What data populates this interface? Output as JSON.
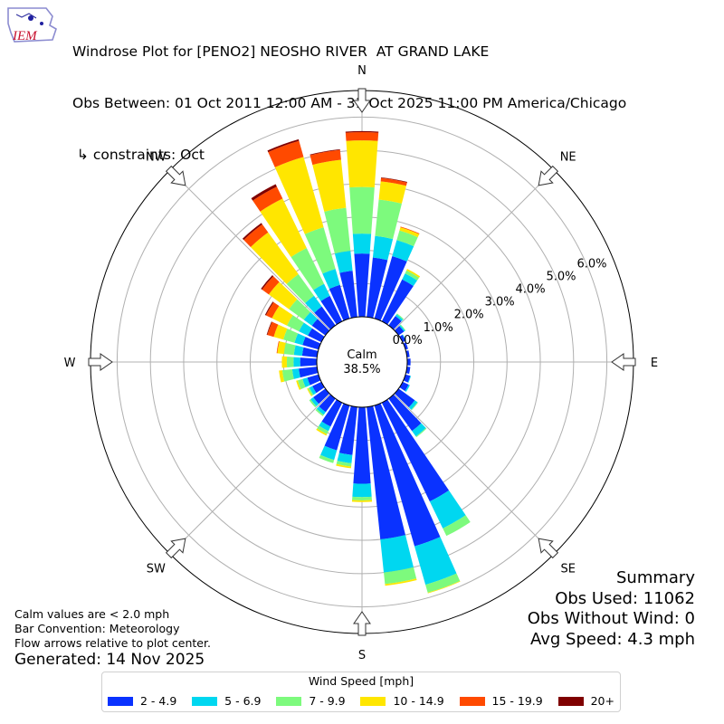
{
  "logo": {
    "text": "IEM",
    "color": "#c8102e"
  },
  "title": {
    "line1": "Windrose Plot for [PENO2] NEOSHO RIVER  AT GRAND LAKE",
    "line2": "Obs Between: 01 Oct 2011 12:00 AM - 31 Oct 2025 11:00 PM America/Chicago",
    "line3": " ↳ constraints: Oct"
  },
  "summary": {
    "heading": "Summary",
    "obs_used": "Obs Used: 11062",
    "obs_without_wind": "Obs Without Wind: 0",
    "avg_speed": "Avg Speed: 4.3 mph"
  },
  "notes": {
    "calm": "Calm values are < 2.0 mph",
    "bar_convention": "Bar Convention: Meteorology",
    "flow_arrows": "Flow arrows relative to plot center."
  },
  "generated": "Generated: 14 Nov 2025",
  "chart_data": {
    "type": "windrose",
    "calm_label": "Calm",
    "calm_value": "38.5%",
    "calm_percent": 38.5,
    "directions": [
      "N",
      "NE",
      "E",
      "SE",
      "S",
      "SW",
      "W",
      "NW"
    ],
    "radial_ticks": [
      "0.0%",
      "1.0%",
      "2.0%",
      "3.0%",
      "4.0%",
      "5.0%",
      "6.0%"
    ],
    "radial_tick_values": [
      0,
      1,
      2,
      3,
      4,
      5,
      6
    ],
    "radial_max": 6.8,
    "legend_title": "Wind Speed [mph]",
    "bins": [
      "2 - 4.9",
      "5 - 6.9",
      "7 - 9.9",
      "10 - 14.9",
      "15 - 19.9",
      "20+"
    ],
    "colors": [
      "#0a32ff",
      "#00d7f0",
      "#7dfa7d",
      "#ffe600",
      "#ff4a00",
      "#7f0000"
    ],
    "sector_width_deg": 10,
    "sectors": [
      {
        "dir": 0,
        "values": [
          1.9,
          0.6,
          1.4,
          1.4,
          0.25,
          0.03
        ]
      },
      {
        "dir": 10,
        "values": [
          1.8,
          0.65,
          1.1,
          0.55,
          0.1,
          0.02
        ]
      },
      {
        "dir": 20,
        "values": [
          1.95,
          0.5,
          0.3,
          0.1,
          0.02,
          0
        ]
      },
      {
        "dir": 30,
        "values": [
          1.4,
          0.2,
          0.1,
          0.05,
          0,
          0
        ]
      },
      {
        "dir": 40,
        "values": [
          0.35,
          0.06,
          0.03,
          0,
          0,
          0
        ]
      },
      {
        "dir": 50,
        "values": [
          0.2,
          0.04,
          0.02,
          0,
          0,
          0
        ]
      },
      {
        "dir": 60,
        "values": [
          0.1,
          0.02,
          0,
          0,
          0,
          0
        ]
      },
      {
        "dir": 70,
        "values": [
          0.08,
          0,
          0,
          0,
          0,
          0
        ]
      },
      {
        "dir": 80,
        "values": [
          0.08,
          0,
          0,
          0,
          0,
          0
        ]
      },
      {
        "dir": 90,
        "values": [
          0.1,
          0,
          0,
          0,
          0,
          0
        ]
      },
      {
        "dir": 100,
        "values": [
          0.1,
          0,
          0,
          0,
          0,
          0
        ]
      },
      {
        "dir": 110,
        "values": [
          0.15,
          0.02,
          0,
          0,
          0,
          0
        ]
      },
      {
        "dir": 120,
        "values": [
          0.2,
          0.04,
          0,
          0,
          0,
          0
        ]
      },
      {
        "dir": 130,
        "values": [
          0.6,
          0.1,
          0.02,
          0,
          0,
          0
        ]
      },
      {
        "dir": 140,
        "values": [
          1.2,
          0.2,
          0.03,
          0,
          0,
          0
        ]
      },
      {
        "dir": 150,
        "values": [
          3.3,
          0.9,
          0.25,
          0,
          0,
          0
        ]
      },
      {
        "dir": 160,
        "values": [
          4.4,
          1.2,
          0.25,
          0.02,
          0,
          0
        ]
      },
      {
        "dir": 170,
        "values": [
          4.0,
          1.0,
          0.35,
          0.05,
          0,
          0
        ]
      },
      {
        "dir": 180,
        "values": [
          2.3,
          0.4,
          0.1,
          0.05,
          0,
          0
        ]
      },
      {
        "dir": 190,
        "values": [
          1.45,
          0.25,
          0.1,
          0.05,
          0,
          0
        ]
      },
      {
        "dir": 200,
        "values": [
          1.4,
          0.3,
          0.1,
          0,
          0,
          0
        ]
      },
      {
        "dir": 210,
        "values": [
          0.8,
          0.15,
          0.1,
          0.05,
          0,
          0
        ]
      },
      {
        "dir": 220,
        "values": [
          0.5,
          0.1,
          0.05,
          0,
          0,
          0
        ]
      },
      {
        "dir": 230,
        "values": [
          0.45,
          0.1,
          0.05,
          0,
          0,
          0
        ]
      },
      {
        "dir": 240,
        "values": [
          0.3,
          0.1,
          0.05,
          0.03,
          0,
          0
        ]
      },
      {
        "dir": 250,
        "values": [
          0.35,
          0.15,
          0.15,
          0.05,
          0,
          0
        ]
      },
      {
        "dir": 260,
        "values": [
          0.55,
          0.2,
          0.3,
          0.1,
          0,
          0
        ]
      },
      {
        "dir": 270,
        "values": [
          0.5,
          0.2,
          0.2,
          0.15,
          0,
          0
        ]
      },
      {
        "dir": 280,
        "values": [
          0.45,
          0.25,
          0.3,
          0.2,
          0.02,
          0
        ]
      },
      {
        "dir": 290,
        "values": [
          0.5,
          0.25,
          0.35,
          0.3,
          0.2,
          0.02
        ]
      },
      {
        "dir": 300,
        "values": [
          0.45,
          0.3,
          0.4,
          0.5,
          0.2,
          0.03
        ]
      },
      {
        "dir": 310,
        "values": [
          0.5,
          0.3,
          0.55,
          0.75,
          0.25,
          0.04
        ]
      },
      {
        "dir": 320,
        "values": [
          0.7,
          0.4,
          0.8,
          1.55,
          0.3,
          0.05
        ]
      },
      {
        "dir": 330,
        "values": [
          0.85,
          0.4,
          1.2,
          1.65,
          0.4,
          0.08
        ]
      },
      {
        "dir": 340,
        "values": [
          1.05,
          0.5,
          1.3,
          2.2,
          0.5,
          0.05
        ]
      },
      {
        "dir": 350,
        "values": [
          1.4,
          0.6,
          1.3,
          1.45,
          0.3,
          0.02
        ]
      }
    ]
  }
}
